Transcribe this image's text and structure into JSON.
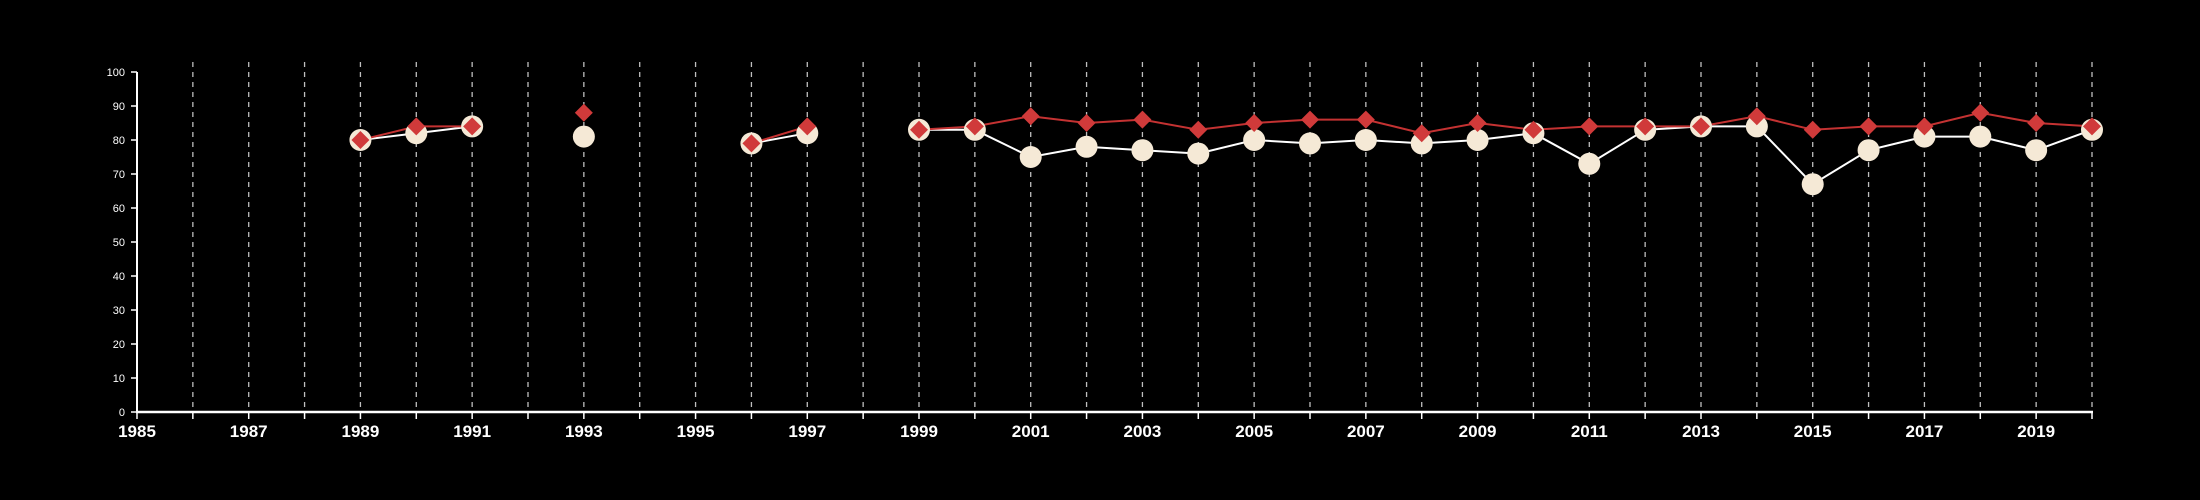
{
  "chart_data": {
    "type": "line",
    "title": "",
    "xlabel": "",
    "ylabel": "",
    "xlim": [
      1985,
      2020
    ],
    "ylim": [
      0,
      100
    ],
    "x_ticks": [
      1985,
      1987,
      1989,
      1991,
      1993,
      1995,
      1997,
      1999,
      2001,
      2003,
      2005,
      2007,
      2009,
      2011,
      2013,
      2015,
      2017,
      2019
    ],
    "y_ticks": [
      0,
      10,
      20,
      30,
      40,
      50,
      60,
      70,
      80,
      90,
      100
    ],
    "vertical_gridlines_years": [
      1986,
      1987,
      1988,
      1989,
      1990,
      1991,
      1992,
      1993,
      1994,
      1995,
      1996,
      1997,
      1998,
      1999,
      2000,
      2001,
      2002,
      2003,
      2004,
      2005,
      2006,
      2007,
      2008,
      2009,
      2010,
      2011,
      2012,
      2013,
      2014,
      2015,
      2016,
      2017,
      2018,
      2019,
      2020
    ],
    "grid": "vertical dashed",
    "legend": "none",
    "background_color": "#000000",
    "series": [
      {
        "marker": "circle",
        "color": "#f5e9d6",
        "line_color": "#ffffff",
        "points": [
          [
            1989,
            80
          ],
          [
            1990,
            82
          ],
          [
            1991,
            84
          ],
          [
            1993,
            81
          ],
          [
            1996,
            79
          ],
          [
            1997,
            82
          ],
          [
            1999,
            83
          ],
          [
            2000,
            83
          ],
          [
            2001,
            75
          ],
          [
            2002,
            78
          ],
          [
            2003,
            77
          ],
          [
            2004,
            76
          ],
          [
            2005,
            80
          ],
          [
            2006,
            79
          ],
          [
            2007,
            80
          ],
          [
            2008,
            79
          ],
          [
            2009,
            80
          ],
          [
            2010,
            82
          ],
          [
            2011,
            73
          ],
          [
            2012,
            83
          ],
          [
            2013,
            84
          ],
          [
            2014,
            84
          ],
          [
            2015,
            67
          ],
          [
            2016,
            77
          ],
          [
            2017,
            81
          ],
          [
            2018,
            81
          ],
          [
            2019,
            77
          ],
          [
            2020,
            83
          ]
        ]
      },
      {
        "marker": "diamond",
        "color": "#d03a3a",
        "line_color": "#c43232",
        "points": [
          [
            1989,
            80
          ],
          [
            1990,
            84
          ],
          [
            1991,
            84
          ],
          [
            1993,
            88
          ],
          [
            1996,
            79
          ],
          [
            1997,
            84
          ],
          [
            1999,
            83
          ],
          [
            2000,
            84
          ],
          [
            2001,
            87
          ],
          [
            2002,
            85
          ],
          [
            2003,
            86
          ],
          [
            2004,
            83
          ],
          [
            2005,
            85
          ],
          [
            2006,
            86
          ],
          [
            2007,
            86
          ],
          [
            2008,
            82
          ],
          [
            2009,
            85
          ],
          [
            2010,
            83
          ],
          [
            2011,
            84
          ],
          [
            2012,
            84
          ],
          [
            2013,
            84
          ],
          [
            2014,
            87
          ],
          [
            2015,
            83
          ],
          [
            2016,
            84
          ],
          [
            2017,
            84
          ],
          [
            2018,
            88
          ],
          [
            2019,
            85
          ],
          [
            2020,
            84
          ]
        ]
      }
    ]
  }
}
